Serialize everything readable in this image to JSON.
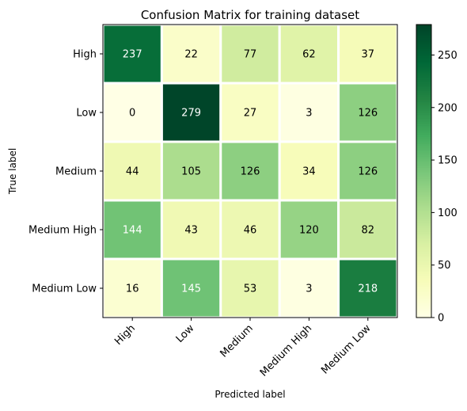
{
  "chart_data": {
    "type": "heatmap",
    "title": "Confusion Matrix for training dataset",
    "xlabel": "Predicted label",
    "ylabel": "True label",
    "x_categories": [
      "High",
      "Low",
      "Medium",
      "Medium High",
      "Medium Low"
    ],
    "y_categories": [
      "High",
      "Low",
      "Medium",
      "Medium High",
      "Medium Low"
    ],
    "values": [
      [
        237,
        22,
        77,
        62,
        37
      ],
      [
        0,
        279,
        27,
        3,
        126
      ],
      [
        44,
        105,
        126,
        34,
        126
      ],
      [
        144,
        43,
        46,
        120,
        82
      ],
      [
        16,
        145,
        53,
        3,
        218
      ]
    ],
    "colorscale": "YlGn",
    "vmin": 0,
    "vmax": 279,
    "colorbar_ticks": [
      0,
      50,
      100,
      150,
      200,
      250
    ],
    "grid": false
  }
}
